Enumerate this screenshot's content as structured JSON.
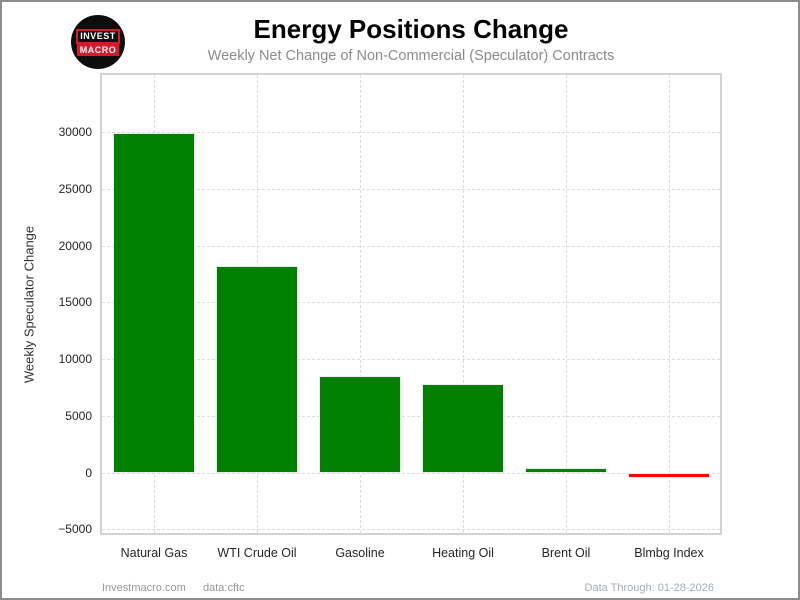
{
  "header": {
    "title": "Energy Positions Change",
    "subtitle": "Weekly Net Change of Non-Commercial (Speculator) Contracts"
  },
  "logo": {
    "line1": "INVEST",
    "line2": "MACRO",
    "bg_color": "#0d0d0d",
    "accent_color": "#d6192b"
  },
  "chart_data": {
    "type": "bar",
    "title": "Energy Positions Change",
    "subtitle": "Weekly Net Change of Non-Commercial (Speculator) Contracts",
    "categories": [
      "Natural Gas",
      "WTI Crude Oil",
      "Gasoline",
      "Heating Oil",
      "Brent Oil",
      "Blmbg Index"
    ],
    "values": [
      29900,
      18200,
      8500,
      7800,
      400,
      -500
    ],
    "xlabel": "",
    "ylabel": "Weekly Speculator Change",
    "ylim": [
      -5333,
      35050
    ],
    "yticks": [
      -5000,
      0,
      5000,
      10000,
      15000,
      20000,
      25000,
      30000
    ],
    "ytick_labels": [
      "−5000",
      "0",
      "5000",
      "10000",
      "15000",
      "20000",
      "25000",
      "30000"
    ],
    "grid": "dashed",
    "legend": "none",
    "positive_color": "#008000",
    "negative_color": "#ff0000",
    "bar_width_ratio": 0.8
  },
  "footer": {
    "site": "Investmacro.com",
    "source": "data:cftc",
    "data_through": "Data Through: 01-28-2026"
  }
}
